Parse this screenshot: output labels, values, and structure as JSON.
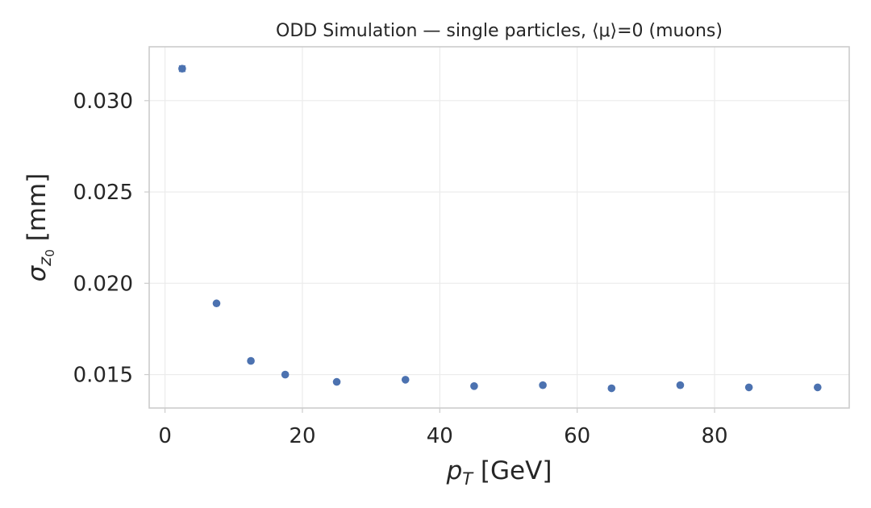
{
  "chart_data": {
    "type": "scatter",
    "title": "ODD Simulation — single particles, ⟨μ⟩=0 (muons)",
    "xlabel": {
      "base": "p",
      "sub": "T",
      "rest": " [GeV]"
    },
    "ylabel": {
      "base": "σ",
      "sub": "z",
      "subsub": "0",
      "rest": " [mm]"
    },
    "xlim": [
      -2.3,
      99.6
    ],
    "ylim": [
      0.01317,
      0.03295
    ],
    "xticks": [
      0,
      20,
      40,
      60,
      80
    ],
    "xtick_labels": [
      "0",
      "20",
      "40",
      "60",
      "80"
    ],
    "yticks": [
      0.015,
      0.02,
      0.025,
      0.03
    ],
    "ytick_labels": [
      "0.015",
      "0.020",
      "0.025",
      "0.030"
    ],
    "grid": true,
    "color": "#4c72b0",
    "series": [
      {
        "x": [
          2.5,
          7.5,
          12.5,
          17.5,
          25,
          35,
          45,
          55,
          65,
          75,
          85,
          95
        ],
        "y": [
          0.03175,
          0.0189,
          0.01575,
          0.015,
          0.0146,
          0.01472,
          0.01437,
          0.01442,
          0.01425,
          0.01442,
          0.0143,
          0.0143
        ],
        "yerr": [
          0.00015,
          8e-05,
          5e-05,
          4e-05,
          3e-05,
          3e-05,
          3e-05,
          3e-05,
          3e-05,
          3e-05,
          3e-05,
          3e-05
        ]
      }
    ]
  }
}
